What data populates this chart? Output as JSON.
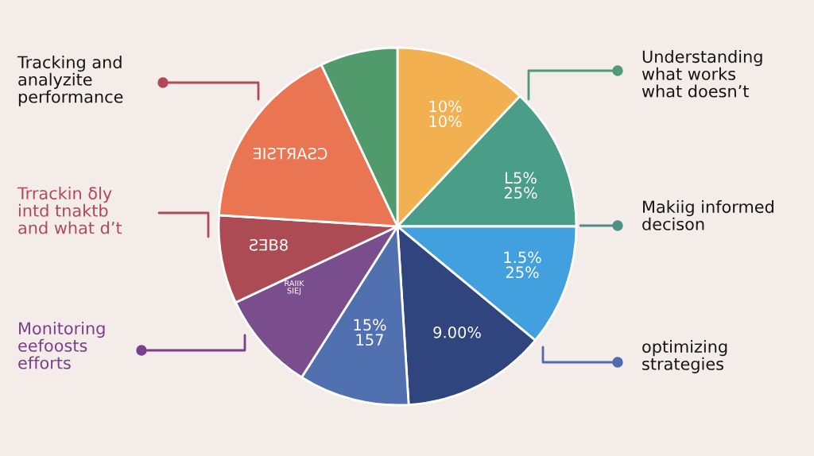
{
  "chart_data": {
    "type": "pie",
    "categories": [
      null,
      null,
      null,
      null,
      null,
      null,
      null,
      null,
      null
    ],
    "values": [
      12,
      13,
      11,
      13,
      10,
      9,
      8,
      17,
      7
    ],
    "colors": [
      "#f2b050",
      "#4a9e88",
      "#42a0de",
      "#30457e",
      "#5070b0",
      "#7a4e8c",
      "#ad4b55",
      "#e97552",
      "#519a6c"
    ],
    "annotations": [
      "Tracking and\nanalyzite\nperformance",
      "Trrackin ẟly\nintd tnaktb\nand what d’t",
      "Monitoring\neefoosts\nefforts",
      "Understanding\nwhat works\nwhat doesn’t",
      "Makiig informed\ndecison",
      "optimizing\nstrategies",
      "10%\n10%",
      "L5%\n25%",
      "1.5%\n25%",
      "9.00%",
      "15%\n157",
      "RAIIK\nSIEJ",
      "ƧƎB8",
      "ƎIƧTЯAƧƆ"
    ]
  }
}
